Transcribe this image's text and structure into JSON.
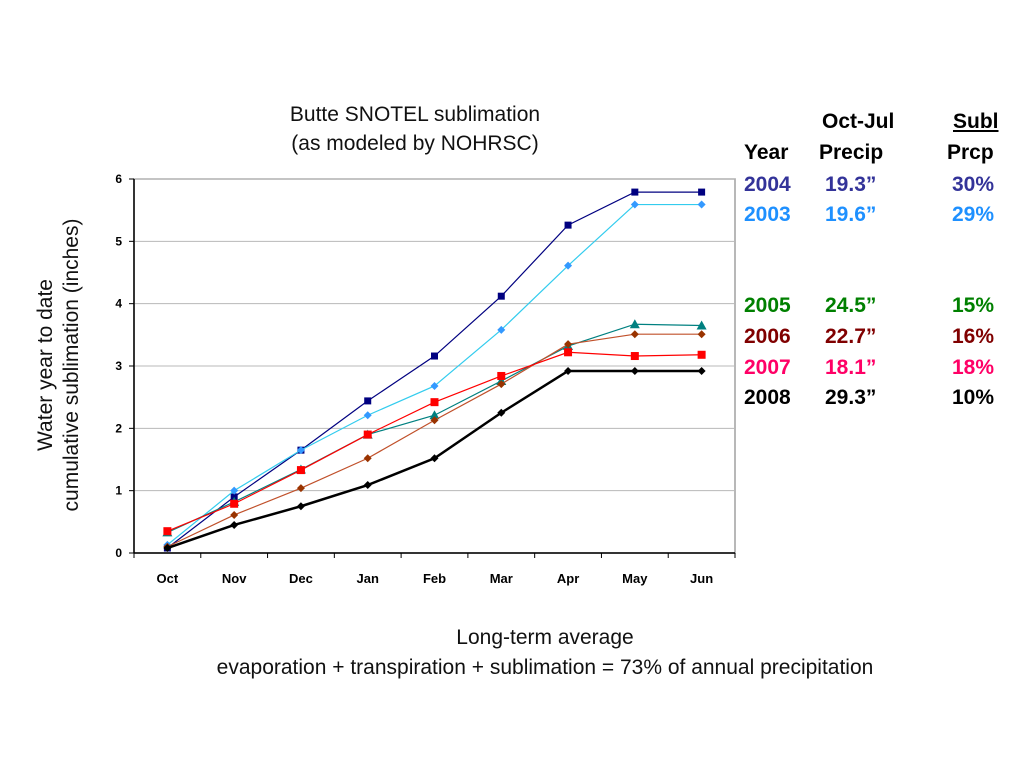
{
  "chart_data": {
    "type": "line",
    "title": "Butte SNOTEL sublimation",
    "subtitle": "(as modeled by NOHRSC)",
    "xlabel": "",
    "ylabel_line1": "Water year to date",
    "ylabel_line2": "cumulative sublimation (inches)",
    "categories": [
      "Oct",
      "Nov",
      "Dec",
      "Jan",
      "Feb",
      "Mar",
      "Apr",
      "May",
      "Jun"
    ],
    "ylim": [
      0,
      6
    ],
    "yticks": [
      0,
      1,
      2,
      3,
      4,
      5,
      6
    ],
    "grid": true,
    "legend": "none",
    "series": [
      {
        "name": "2004",
        "color": "#000080",
        "marker": "square",
        "values": [
          0.08,
          0.9,
          1.65,
          2.44,
          3.16,
          4.12,
          5.26,
          5.79,
          5.79
        ]
      },
      {
        "name": "2003",
        "color": "#3399ff",
        "line_color": "#33ccee",
        "marker": "diamond",
        "values": [
          0.13,
          1.0,
          1.65,
          2.21,
          2.68,
          3.58,
          4.61,
          5.59,
          5.59
        ]
      },
      {
        "name": "2005",
        "color": "#008080",
        "marker": "triangle",
        "values": [
          0.33,
          0.82,
          1.34,
          1.9,
          2.21,
          2.76,
          3.32,
          3.67,
          3.65
        ]
      },
      {
        "name": "2006",
        "color": "#993300",
        "line_color": "#c0502a",
        "marker": "diamond",
        "values": [
          0.1,
          0.61,
          1.04,
          1.52,
          2.13,
          2.71,
          3.35,
          3.51,
          3.51
        ]
      },
      {
        "name": "2007",
        "color": "#ff0000",
        "marker": "square",
        "values": [
          0.35,
          0.79,
          1.33,
          1.9,
          2.42,
          2.84,
          3.22,
          3.16,
          3.18
        ]
      },
      {
        "name": "2008",
        "color": "#000000",
        "marker": "diamond",
        "thick": true,
        "values": [
          0.08,
          0.45,
          0.75,
          1.09,
          1.52,
          2.25,
          2.92,
          2.92,
          2.92
        ]
      }
    ]
  },
  "table": {
    "header_top": {
      "precip": "Oct-Jul",
      "subl": "Subl"
    },
    "header": {
      "year": "Year",
      "precip": "Precip",
      "subl": "Prcp"
    },
    "rows": [
      {
        "year": "2004",
        "precip": "19.3”",
        "subl": "30%",
        "color": "#333399"
      },
      {
        "year": "2003",
        "precip": "19.6”",
        "subl": "29%",
        "color": "#1e90ff"
      },
      {
        "year": "2005",
        "precip": "24.5”",
        "subl": "15%",
        "color": "#008000"
      },
      {
        "year": "2006",
        "precip": "22.7”",
        "subl": "16%",
        "color": "#800000"
      },
      {
        "year": "2007",
        "precip": "18.1”",
        "subl": "18%",
        "color": "#ff0066"
      },
      {
        "year": "2008",
        "precip": "29.3”",
        "subl": "10%",
        "color": "#000000"
      }
    ]
  },
  "footer": {
    "line1": "Long-term average",
    "line2": "evaporation + transpiration + sublimation = 73% of annual precipitation"
  }
}
